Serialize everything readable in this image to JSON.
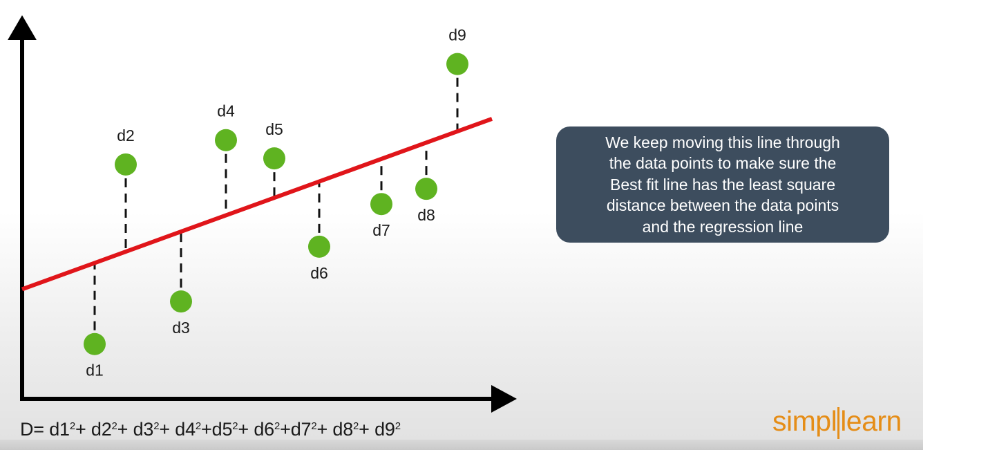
{
  "chart_data": {
    "type": "scatter",
    "title": "",
    "xlabel": "",
    "ylabel": "",
    "grid": false,
    "points": [
      {
        "label": "d1",
        "x": 1.05,
        "y": 0.9
      },
      {
        "label": "d2",
        "x": 1.5,
        "y": 3.85
      },
      {
        "label": "d3",
        "x": 2.3,
        "y": 1.6
      },
      {
        "label": "d4",
        "x": 2.95,
        "y": 4.25
      },
      {
        "label": "d5",
        "x": 3.65,
        "y": 3.95
      },
      {
        "label": "d6",
        "x": 4.3,
        "y": 2.5
      },
      {
        "label": "d7",
        "x": 5.2,
        "y": 3.2
      },
      {
        "label": "d8",
        "x": 5.85,
        "y": 3.45
      },
      {
        "label": "d9",
        "x": 6.3,
        "y": 5.5
      }
    ],
    "regression_line": {
      "x": [
        0,
        6.8
      ],
      "y": [
        1.8,
        4.6
      ]
    },
    "xlim": [
      0,
      7.2
    ],
    "ylim": [
      0,
      6.2
    ],
    "colors": {
      "points": "#5fb321",
      "line": "#e0151a",
      "axes": "#000000"
    }
  },
  "callout": {
    "lines": [
      "We keep moving this line through",
      "the data points to make sure the",
      "Best fit line has the least square",
      "distance between the data points",
      "and the regression line"
    ]
  },
  "formula": {
    "prefix": "D=",
    "terms": [
      {
        "base": "d1",
        "exp": "2",
        "sep": "+"
      },
      {
        "base": "d2",
        "exp": "2",
        "sep": "+"
      },
      {
        "base": "d3",
        "exp": "2",
        "sep": "+"
      },
      {
        "base": "d4",
        "exp": "2",
        "sep": "+"
      },
      {
        "base": "d5",
        "exp": "2",
        "sep": "+"
      },
      {
        "base": "d6",
        "exp": "2",
        "sep": "+"
      },
      {
        "base": "d7",
        "exp": "2",
        "sep": "+"
      },
      {
        "base": "d8",
        "exp": "2",
        "sep": "+"
      },
      {
        "base": "d9",
        "exp": "2",
        "sep": ""
      }
    ]
  },
  "logo": {
    "part1": "simpl",
    "part2": "learn",
    "color": "#e58d17"
  }
}
